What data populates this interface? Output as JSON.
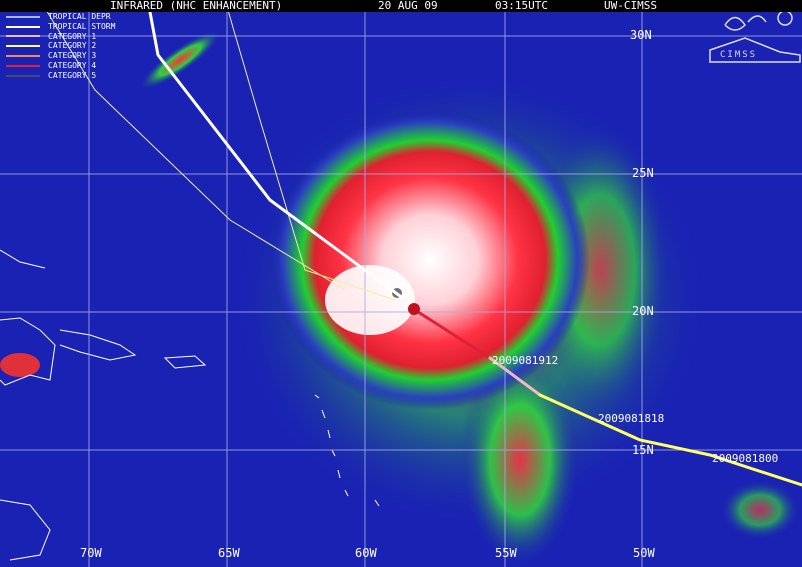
{
  "header": {
    "product": "INFRARED (NHC ENHANCEMENT)",
    "date": "20 AUG 09",
    "time": "03:15UTC",
    "source": "UW-CIMSS"
  },
  "logo": {
    "text": "CIMSS"
  },
  "legend": [
    {
      "label": "TROPICAL DEPR",
      "color": "#9fb8ff"
    },
    {
      "label": "TROPICAL STORM",
      "color": "#ffffff"
    },
    {
      "label": "CATEGORY 1",
      "color": "#f4b6c8"
    },
    {
      "label": "CATEGORY 2",
      "color": "#ffff66"
    },
    {
      "label": "CATEGORY 3",
      "color": "#f08a5a"
    },
    {
      "label": "CATEGORY 4",
      "color": "#e0203a"
    },
    {
      "label": "CATEGORY 5",
      "color": "#4a4a6a"
    }
  ],
  "latitude_labels": [
    "30N",
    "25N",
    "20N",
    "15N"
  ],
  "longitude_labels": [
    "70W",
    "65W",
    "60W",
    "55W",
    "50W"
  ],
  "track_times": [
    "2009081912",
    "2009081818",
    "2009081800"
  ],
  "colors": {
    "ocean": "#1a1fb0",
    "grid": "#a9a9e8",
    "cold_cloud": "#ffffff",
    "deep_convection": "#ff2a3a",
    "cloud_green": "#22e030"
  }
}
